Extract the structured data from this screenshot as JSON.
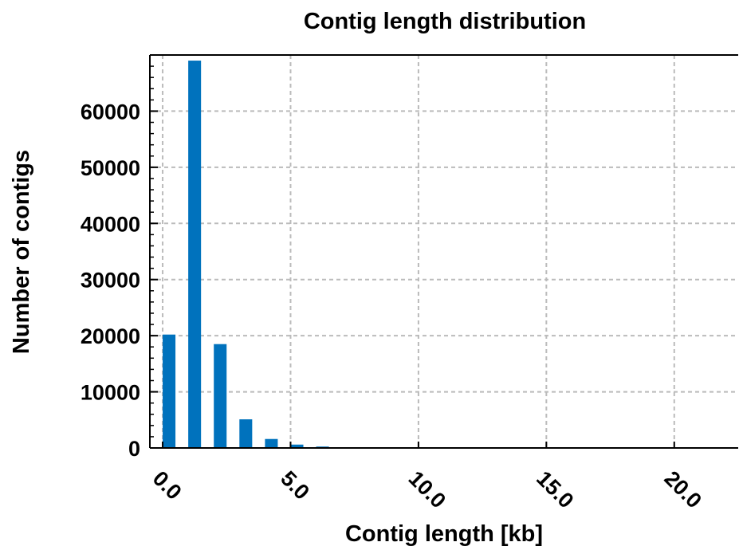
{
  "chart_data": {
    "type": "bar",
    "title": "Contig length distribution",
    "xlabel": "Contig length [kb]",
    "ylabel": "Number of contigs",
    "x": [
      0.25,
      1.25,
      2.25,
      3.25,
      4.25,
      5.25,
      6.25,
      7.25,
      8.25,
      9.25,
      10.25,
      11.25,
      12.25,
      13.25,
      14.25,
      15.25,
      16.25,
      17.25,
      18.25,
      19.25,
      20.25,
      21.25
    ],
    "values": [
      20200,
      69000,
      18500,
      5100,
      1600,
      600,
      250,
      100,
      60,
      40,
      30,
      20,
      15,
      10,
      8,
      6,
      5,
      4,
      3,
      3,
      2,
      2
    ],
    "bar_width": 0.5,
    "xlim": [
      -0.5,
      22.5
    ],
    "ylim": [
      0,
      70000
    ],
    "xticks": [
      0,
      5,
      10,
      15,
      20
    ],
    "xtick_labels": [
      "0.0",
      "5.0",
      "10.0",
      "15.0",
      "20.0"
    ],
    "yticks": [
      0,
      10000,
      20000,
      30000,
      40000,
      50000,
      60000
    ],
    "ytick_labels": [
      "0",
      "10000",
      "20000",
      "30000",
      "40000",
      "50000",
      "60000"
    ],
    "y_minor_step": 2000,
    "grid": true,
    "bar_color": "#0072BD",
    "grid_color": "#bbbbbb"
  }
}
